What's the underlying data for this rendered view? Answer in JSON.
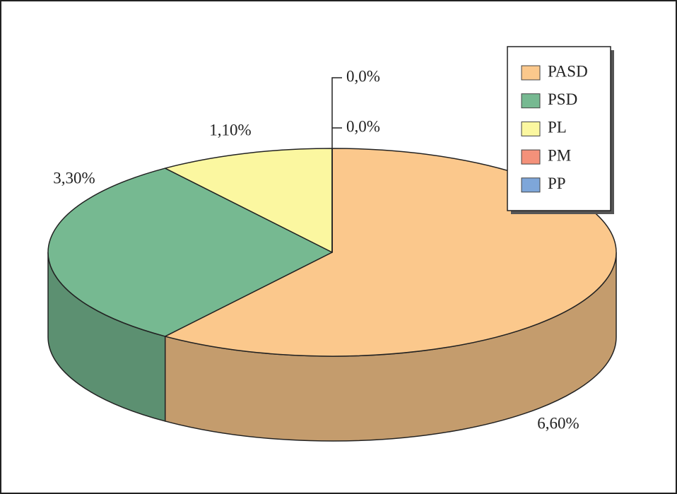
{
  "chart_data": {
    "type": "pie",
    "categories": [
      "PASD",
      "PSD",
      "PL",
      "PM",
      "PP"
    ],
    "values": [
      6.6,
      3.3,
      1.1,
      0.0,
      0.0
    ],
    "value_labels": [
      "6,60%",
      "3,30%",
      "1,10%",
      "0,0%",
      "0,0%"
    ],
    "colors": [
      "#fbc88c",
      "#76b991",
      "#fbf7a0",
      "#f4917a",
      "#7ea6d9"
    ],
    "legend": "upper right"
  }
}
